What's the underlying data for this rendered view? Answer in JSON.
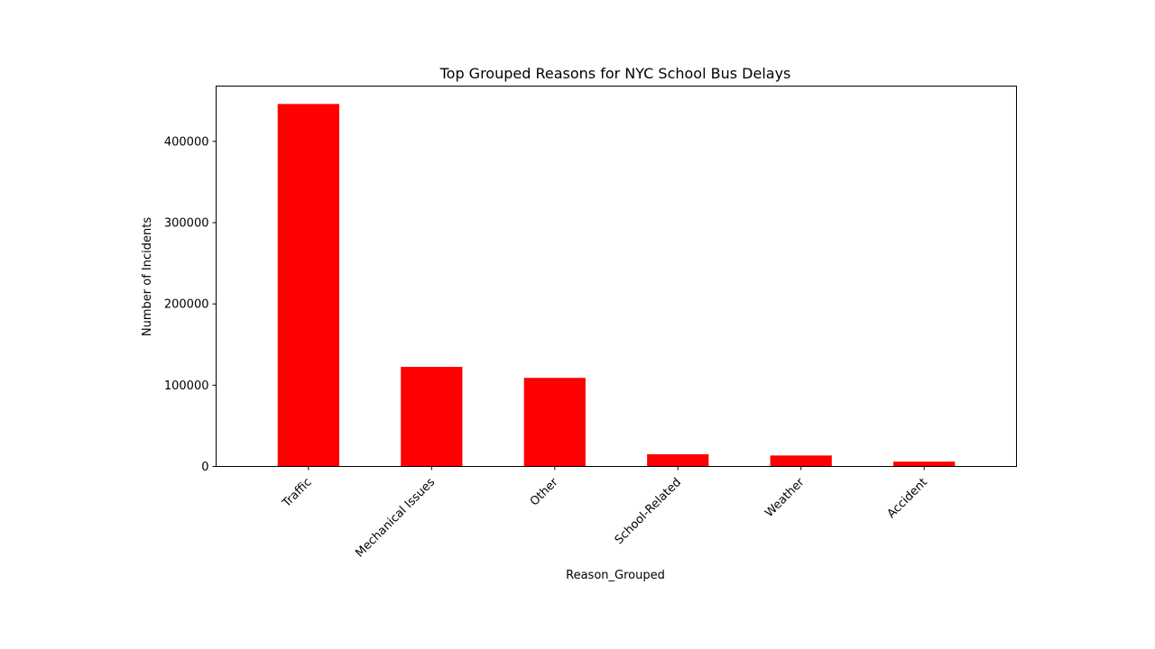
{
  "chart_data": {
    "type": "bar",
    "title": "Top Grouped Reasons for NYC School Bus Delays",
    "xlabel": "Reason_Grouped",
    "ylabel": "Number of Incidents",
    "categories": [
      "Traffic",
      "Mechanical Issues",
      "Other",
      "School-Related",
      "Weather",
      "Accident"
    ],
    "values": [
      446000,
      122500,
      109000,
      15000,
      13500,
      6000
    ],
    "ylim": [
      0,
      468000
    ],
    "yticks": [
      0,
      100000,
      200000,
      300000,
      400000
    ],
    "ytick_labels": [
      "0",
      "100000",
      "200000",
      "300000",
      "400000"
    ],
    "bar_color": "#ff0000",
    "grid": false,
    "legend": "none"
  }
}
